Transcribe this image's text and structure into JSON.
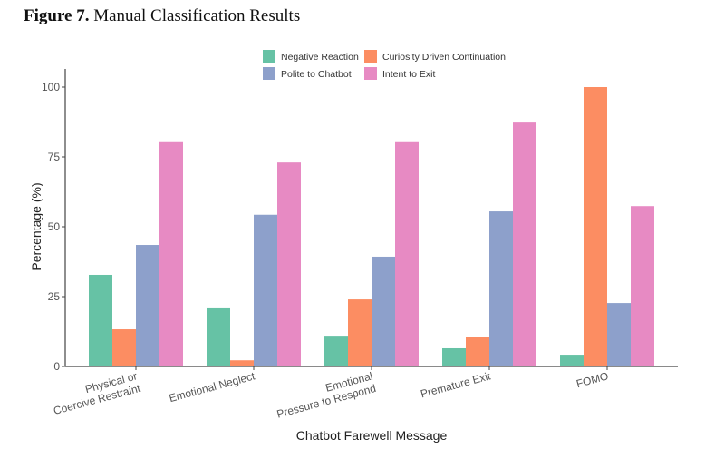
{
  "figure": {
    "label": "Figure 7.",
    "caption": "Manual Classification Results"
  },
  "chart_data": {
    "type": "bar",
    "title": "",
    "xlabel": "Chatbot Farewell Message",
    "ylabel": "Percentage (%)",
    "ylim": [
      0,
      100
    ],
    "yticks": [
      0,
      25,
      50,
      75,
      100
    ],
    "grid": false,
    "legend_position": "top-center",
    "categories": [
      [
        "Physical or",
        "Coercive Restraint"
      ],
      [
        "Emotional Neglect"
      ],
      [
        "Emotional",
        "Pressure to Respond"
      ],
      [
        "Premature Exit"
      ],
      [
        "FOMO"
      ]
    ],
    "series": [
      {
        "name": "Negative Reaction",
        "color": "#66c2a5",
        "values": [
          32.8,
          20.8,
          11.0,
          6.5,
          4.2
        ]
      },
      {
        "name": "Curiosity Driven Continuation",
        "color": "#fc8d62",
        "values": [
          13.3,
          2.2,
          24.0,
          10.7,
          100.0
        ]
      },
      {
        "name": "Polite to Chatbot",
        "color": "#8da0cb",
        "values": [
          43.5,
          54.3,
          39.3,
          55.5,
          22.7
        ]
      },
      {
        "name": "Intent to Exit",
        "color": "#e78ac3",
        "values": [
          80.6,
          73.0,
          80.6,
          87.3,
          57.4
        ]
      }
    ]
  }
}
